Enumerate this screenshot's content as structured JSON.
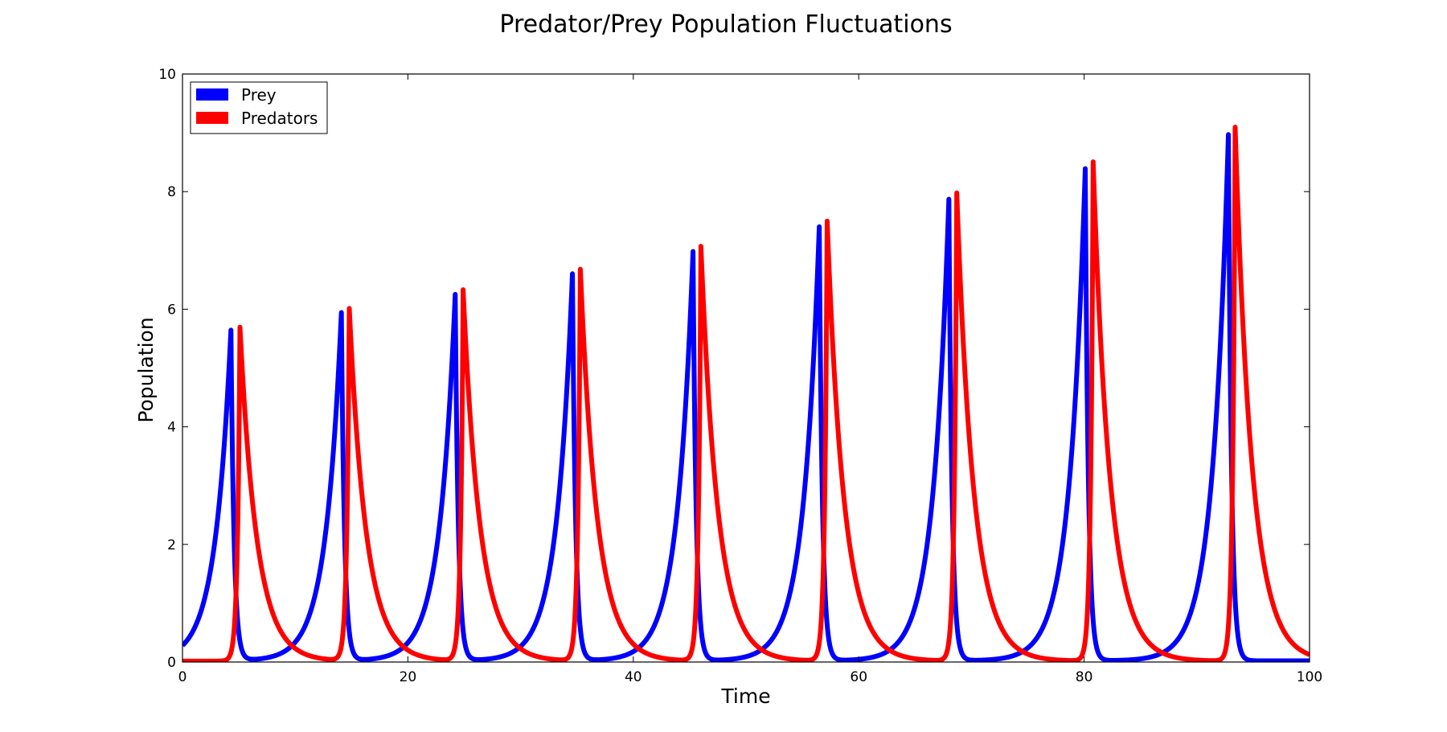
{
  "chart_data": {
    "type": "line",
    "title": "Predator/Prey Population Fluctuations",
    "xlabel": "Time",
    "ylabel": "Population",
    "xlim": [
      0,
      100
    ],
    "ylim": [
      0,
      10
    ],
    "xticks": [
      0,
      20,
      40,
      60,
      80,
      100
    ],
    "yticks": [
      0,
      2,
      4,
      6,
      8,
      10
    ],
    "grid": false,
    "legend_position": "top-left",
    "series": [
      {
        "name": "Prey",
        "color": "#0000ff",
        "peaks": [
          {
            "t": 4.3,
            "v": 5.62
          },
          {
            "t": 14.1,
            "v": 5.92
          },
          {
            "t": 24.2,
            "v": 6.23
          },
          {
            "t": 34.6,
            "v": 6.58
          },
          {
            "t": 45.3,
            "v": 6.96
          },
          {
            "t": 56.5,
            "v": 7.38
          },
          {
            "t": 68.0,
            "v": 7.85
          },
          {
            "t": 80.1,
            "v": 8.37
          },
          {
            "t": 92.8,
            "v": 8.95
          }
        ],
        "baseline": 0.02,
        "rise_width": 1.4,
        "fall_width": 0.28
      },
      {
        "name": "Predators",
        "color": "#ff0000",
        "peaks": [
          {
            "t": 5.1,
            "v": 5.68
          },
          {
            "t": 14.8,
            "v": 5.99
          },
          {
            "t": 24.9,
            "v": 6.31
          },
          {
            "t": 35.3,
            "v": 6.66
          },
          {
            "t": 46.0,
            "v": 7.05
          },
          {
            "t": 57.2,
            "v": 7.48
          },
          {
            "t": 68.7,
            "v": 7.96
          },
          {
            "t": 80.8,
            "v": 8.49
          },
          {
            "t": 93.4,
            "v": 9.08
          }
        ],
        "baseline": 0.015,
        "rise_width": 0.22,
        "fall_width": 1.5
      }
    ]
  }
}
